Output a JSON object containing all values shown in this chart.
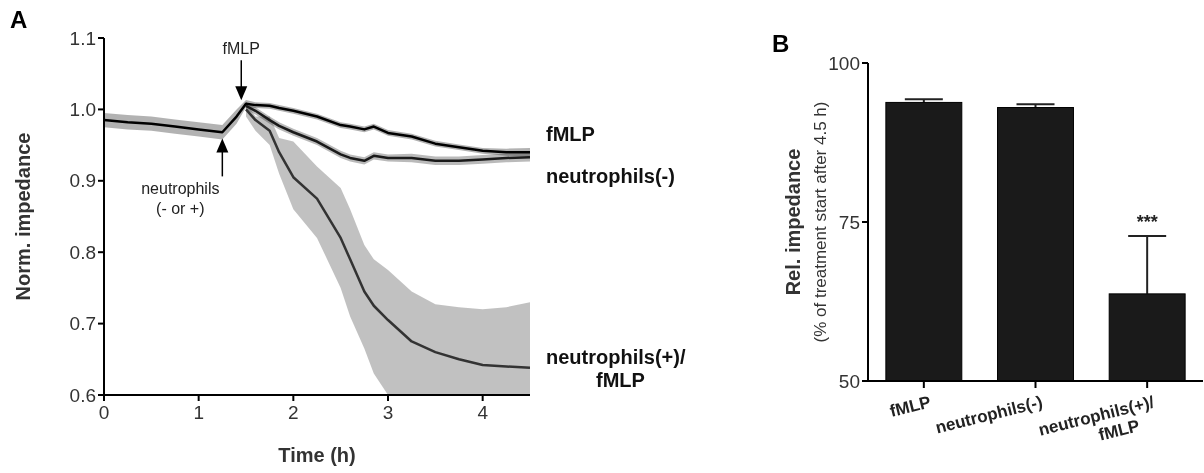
{
  "chart_data": [
    {
      "type": "line",
      "title": "A",
      "xlabel": "Time (h)",
      "ylabel": "Norm. impedance",
      "xlim": [
        0,
        4.5
      ],
      "xticks": [
        0,
        1,
        2,
        3,
        4
      ],
      "ylim": [
        0.6,
        1.1
      ],
      "yticks": [
        {
          "value": 0.6,
          "label": "0.6"
        },
        {
          "value": 0.7,
          "label": "0.7"
        },
        {
          "value": 0.8,
          "label": "0.8"
        },
        {
          "value": 0.9,
          "label": "0.9"
        },
        {
          "value": 1,
          "label": "1.0"
        },
        {
          "value": 1.1,
          "label": "1.1"
        }
      ],
      "grid": false,
      "legend": false,
      "marker": "none",
      "line_style": "solid",
      "x": [
        0,
        0.25,
        0.5,
        0.75,
        1.0,
        1.25,
        1.4,
        1.5,
        1.6,
        1.75,
        1.85,
        2.0,
        2.25,
        2.5,
        2.6,
        2.75,
        2.85,
        3.0,
        3.25,
        3.5,
        3.75,
        4.0,
        4.25,
        4.5
      ],
      "series": [
        {
          "name": "fMLP",
          "color": "#000000",
          "values": [
            0.985,
            0.982,
            0.98,
            0.976,
            0.972,
            0.968,
            0.99,
            1.008,
            1.006,
            1.005,
            1.002,
            0.998,
            0.99,
            0.978,
            0.976,
            0.972,
            0.976,
            0.967,
            0.962,
            0.952,
            0.947,
            0.942,
            0.94,
            0.94
          ],
          "lower": [
            0.975,
            0.972,
            0.97,
            0.966,
            0.962,
            0.958,
            0.98,
            1.003,
            1.002,
            1.001,
            0.998,
            0.994,
            0.986,
            0.974,
            0.972,
            0.968,
            0.972,
            0.963,
            0.958,
            0.948,
            0.943,
            0.938,
            0.935,
            0.934
          ],
          "upper": [
            0.995,
            0.992,
            0.99,
            0.986,
            0.982,
            0.978,
            1.0,
            1.013,
            1.01,
            1.009,
            1.006,
            1.002,
            0.994,
            0.982,
            0.98,
            0.976,
            0.98,
            0.971,
            0.966,
            0.956,
            0.951,
            0.946,
            0.945,
            0.946
          ]
        },
        {
          "name": "neutrophils(-)",
          "color": "#1a1a1a",
          "x": [
            1.5,
            1.6,
            1.75,
            1.85,
            2.0,
            2.25,
            2.5,
            2.6,
            2.75,
            2.85,
            3.0,
            3.25,
            3.5,
            3.75,
            4.0,
            4.25,
            4.5
          ],
          "values": [
            1.005,
            0.998,
            0.985,
            0.977,
            0.968,
            0.955,
            0.937,
            0.932,
            0.928,
            0.935,
            0.932,
            0.932,
            0.928,
            0.928,
            0.93,
            0.932,
            0.933
          ],
          "lower": [
            1.0,
            0.993,
            0.98,
            0.972,
            0.963,
            0.95,
            0.932,
            0.927,
            0.923,
            0.93,
            0.927,
            0.926,
            0.922,
            0.922,
            0.924,
            0.926,
            0.927
          ],
          "upper": [
            1.01,
            1.003,
            0.99,
            0.982,
            0.973,
            0.96,
            0.942,
            0.937,
            0.933,
            0.94,
            0.937,
            0.938,
            0.934,
            0.934,
            0.936,
            0.938,
            0.939
          ]
        },
        {
          "name": "neutrophils(+)/fMLP",
          "color": "#333333",
          "x": [
            1.5,
            1.6,
            1.75,
            1.85,
            2.0,
            2.25,
            2.5,
            2.6,
            2.75,
            2.85,
            3.0,
            3.25,
            3.5,
            3.75,
            4.0,
            4.25,
            4.5
          ],
          "values": [
            1.0,
            0.985,
            0.97,
            0.94,
            0.905,
            0.875,
            0.82,
            0.79,
            0.745,
            0.725,
            0.705,
            0.675,
            0.66,
            0.65,
            0.642,
            0.64,
            0.638
          ],
          "lower": [
            0.99,
            0.97,
            0.95,
            0.91,
            0.86,
            0.82,
            0.75,
            0.71,
            0.665,
            0.63,
            0.6,
            0.6,
            0.6,
            0.6,
            0.6,
            0.6,
            0.6
          ],
          "upper": [
            1.01,
            0.99,
            0.99,
            0.96,
            0.955,
            0.92,
            0.89,
            0.86,
            0.81,
            0.79,
            0.775,
            0.745,
            0.727,
            0.723,
            0.72,
            0.723,
            0.73
          ]
        }
      ],
      "annotations": [
        {
          "text": "fMLP",
          "x": 1.45,
          "y": 1.01
        },
        {
          "text": "neutrophils\n(- or +)",
          "x": 1.25,
          "y": 0.965
        }
      ]
    },
    {
      "type": "bar",
      "title": "B",
      "ylabel": "Rel. impedance\n(% of treatment start after 4.5 h)",
      "categories": [
        "fMLP",
        "neutrophils(-)",
        "neutrophils(+)/fMLP"
      ],
      "values": [
        93.8,
        93.0,
        63.7
      ],
      "errors": [
        [
          93.8,
          94.3
        ],
        [
          93.0,
          93.5
        ],
        [
          63.7,
          72.8
        ]
      ],
      "color": "#1a1a1a",
      "ylim": [
        50,
        100
      ],
      "yticks": [
        50,
        75,
        100
      ],
      "grid": false,
      "annotations": [
        {
          "text": "***",
          "x": "neutrophils(+)/fMLP",
          "y": 72.8
        }
      ]
    }
  ]
}
